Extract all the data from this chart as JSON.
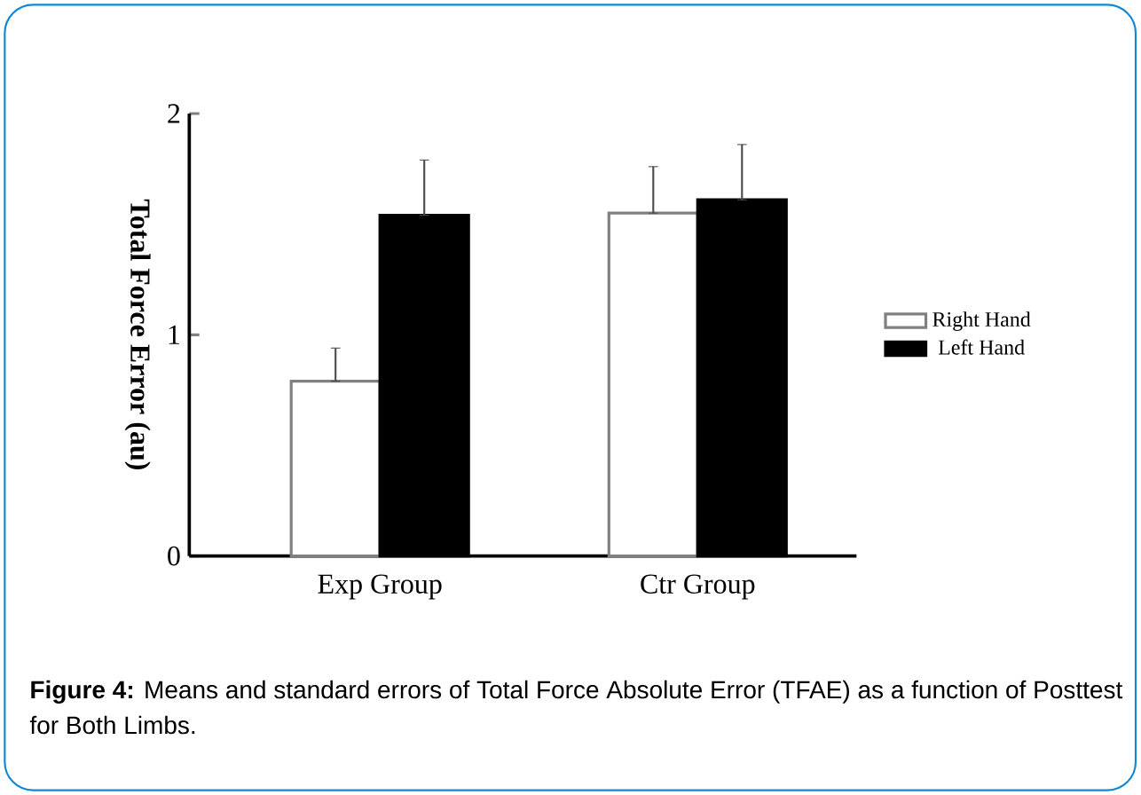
{
  "chart_data": {
    "type": "bar",
    "ylabel": "Total Force Error (au)",
    "categories": [
      "Exp Group",
      "Ctr Group"
    ],
    "series": [
      {
        "name": "Right Hand",
        "color": "#ffffff",
        "values": [
          0.79,
          1.55
        ],
        "errors": [
          [
            0.79,
            0.94
          ],
          [
            1.55,
            1.76
          ]
        ]
      },
      {
        "name": "Left Hand",
        "color": "#000000",
        "values": [
          1.54,
          1.61
        ],
        "errors": [
          [
            1.54,
            1.79
          ],
          [
            1.61,
            1.86
          ]
        ]
      }
    ],
    "ylim": [
      0,
      2
    ],
    "yticks": [
      0,
      1,
      2
    ],
    "grid": false,
    "legend": "right",
    "annotations": [
      "**Figure 4:** Means and standard errors of Total Force Absolute Error (TFAE) as a function of Posttest for Both Limbs."
    ]
  }
}
